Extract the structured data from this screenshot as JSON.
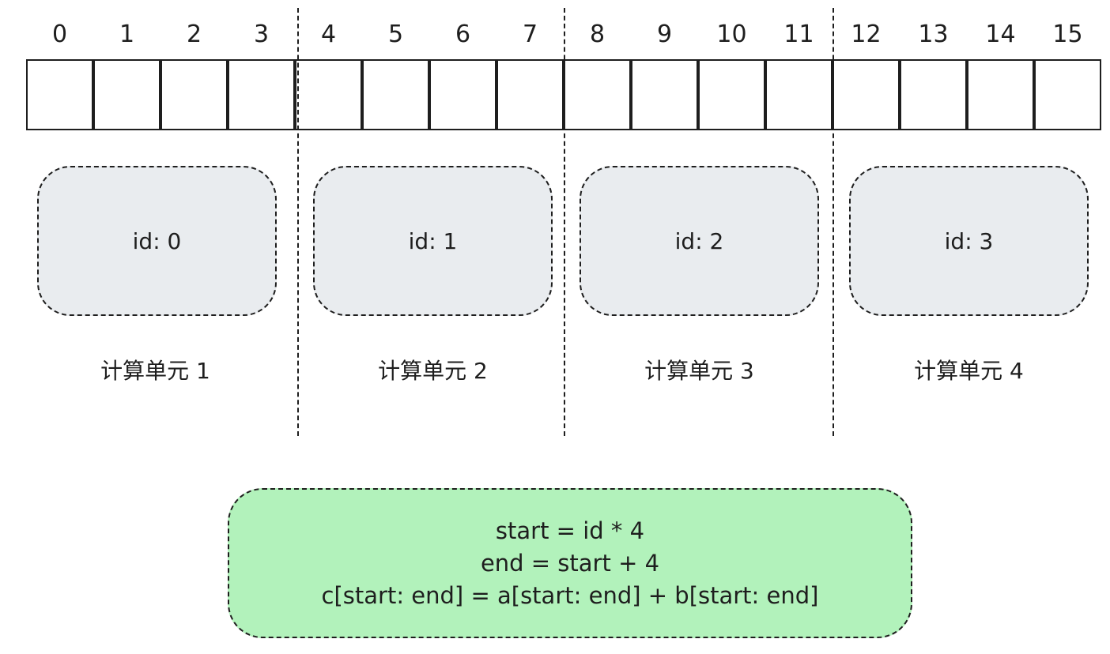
{
  "indices": [
    "0",
    "1",
    "2",
    "3",
    "4",
    "5",
    "6",
    "7",
    "8",
    "9",
    "10",
    "11",
    "12",
    "13",
    "14",
    "15"
  ],
  "units": [
    {
      "id_text": "id: 0",
      "label": "计算单元 1"
    },
    {
      "id_text": "id: 1",
      "label": "计算单元 2"
    },
    {
      "id_text": "id: 2",
      "label": "计算单元 3"
    },
    {
      "id_text": "id: 3",
      "label": "计算单元 4"
    }
  ],
  "code": {
    "line1": "start = id * 4",
    "line2": "end = start + 4",
    "line3": "c[start: end] = a[start: end] + b[start: end]"
  },
  "colors": {
    "unit_fill": "#e9ecef",
    "code_fill": "#b2f2bb",
    "stroke": "#1e1e1e"
  }
}
